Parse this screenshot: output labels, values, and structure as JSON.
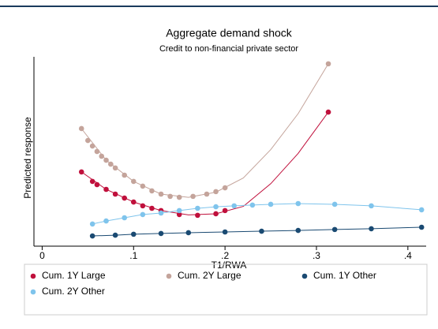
{
  "chart_data": {
    "type": "scatter",
    "title": "Aggregate demand shock",
    "subtitle": "Credit to non-financial private sector",
    "x_label": "T1/RWA",
    "y_label": "Predicted response",
    "xlim": [
      -0.009,
      0.42
    ],
    "ylim": [
      0,
      100
    ],
    "xticks": [
      0,
      {
        "value": 0.1,
        "label": ".1"
      },
      {
        "value": 0.2,
        "label": ".2"
      },
      {
        "value": 0.3,
        "label": ".3"
      },
      {
        "value": 0.4,
        "label": ".4"
      }
    ],
    "series": [
      {
        "name": "Cum. 1Y Large",
        "color": "#c0103c",
        "x": [
          0.043,
          0.055,
          0.06,
          0.07,
          0.08,
          0.09,
          0.1,
          0.11,
          0.12,
          0.13,
          0.15,
          0.17,
          0.19,
          0.2,
          0.313
        ],
        "values": [
          39.2,
          34.2,
          32.5,
          30,
          27.5,
          25.4,
          23.3,
          21.3,
          20,
          18.8,
          16.7,
          16.3,
          17.1,
          18.8,
          70.8
        ],
        "fit_x": [
          0.043,
          0.07,
          0.1,
          0.13,
          0.16,
          0.19,
          0.22,
          0.25,
          0.28,
          0.313
        ],
        "fit_values": [
          39.2,
          30,
          23.3,
          18.8,
          16.5,
          17.1,
          21,
          33,
          49,
          70.8
        ]
      },
      {
        "name": "Cum. 2Y Large",
        "color": "#c4a49b",
        "x": [
          0.043,
          0.05,
          0.055,
          0.06,
          0.065,
          0.07,
          0.075,
          0.08,
          0.09,
          0.1,
          0.11,
          0.12,
          0.13,
          0.14,
          0.15,
          0.165,
          0.18,
          0.19,
          0.2,
          0.313
        ],
        "values": [
          62.1,
          55.8,
          52.9,
          50,
          47.5,
          45.4,
          43.3,
          41.3,
          37.5,
          34.2,
          31.7,
          29.2,
          27.5,
          26.3,
          25.8,
          26.3,
          27.5,
          28.8,
          30.8,
          96.3
        ],
        "fit_x": [
          0.043,
          0.07,
          0.1,
          0.13,
          0.16,
          0.19,
          0.22,
          0.25,
          0.28,
          0.313
        ],
        "fit_values": [
          62.1,
          45.4,
          34.2,
          27.5,
          25.8,
          28.5,
          36,
          51,
          70,
          96.3
        ]
      },
      {
        "name": "Cum. 1Y Other",
        "color": "#1a4a72",
        "x": [
          0.055,
          0.08,
          0.1,
          0.13,
          0.16,
          0.2,
          0.24,
          0.28,
          0.32,
          0.36,
          0.415
        ],
        "values": [
          5.4,
          5.8,
          6.3,
          6.7,
          7.1,
          7.5,
          7.9,
          8.3,
          8.8,
          9.2,
          10
        ]
      },
      {
        "name": "Cum. 2Y Other",
        "color": "#7fc4ec",
        "x": [
          0.055,
          0.07,
          0.09,
          0.11,
          0.13,
          0.15,
          0.17,
          0.19,
          0.21,
          0.23,
          0.25,
          0.28,
          0.32,
          0.36,
          0.415
        ],
        "values": [
          11.7,
          13.3,
          15,
          16.7,
          17.5,
          18.8,
          20,
          20.8,
          21.3,
          21.7,
          22.1,
          22.5,
          22.1,
          21.3,
          19.2
        ]
      }
    ]
  }
}
